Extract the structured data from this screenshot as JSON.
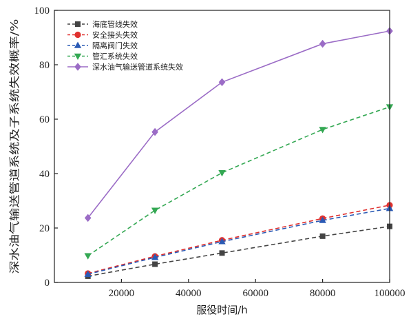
{
  "chart_data": {
    "type": "line",
    "xlabel": "服役时间/h",
    "ylabel": "深水油气输送管道系统及子系统失效概率/%",
    "xlim": [
      0,
      100000
    ],
    "ylim": [
      0,
      100
    ],
    "x_ticks": [
      20000,
      40000,
      60000,
      80000,
      100000
    ],
    "y_ticks": [
      0,
      20,
      40,
      60,
      80,
      100
    ],
    "x": [
      10000,
      30000,
      50000,
      80000,
      100000
    ],
    "grid": false,
    "legend_position": "top-left",
    "series": [
      {
        "name": "海底管线失效",
        "color": "#444444",
        "marker": "square",
        "dashed": true,
        "values": [
          2.3,
          6.7,
          10.8,
          17.0,
          20.6
        ]
      },
      {
        "name": "安全接头失效",
        "color": "#e0312f",
        "marker": "circle",
        "dashed": true,
        "values": [
          3.3,
          9.6,
          15.5,
          23.5,
          28.4
        ]
      },
      {
        "name": "隔离阀门失效",
        "color": "#2a5ab5",
        "marker": "triangle-up",
        "dashed": true,
        "values": [
          3.0,
          9.2,
          15.0,
          22.8,
          27.2
        ]
      },
      {
        "name": "管汇系统失效",
        "color": "#34a853",
        "marker": "triangle-down",
        "dashed": true,
        "values": [
          9.8,
          26.5,
          40.3,
          56.2,
          64.5
        ]
      },
      {
        "name": "深水油气输送管道系统失效",
        "color": "#9b6cc6",
        "marker": "diamond",
        "dashed": false,
        "values": [
          23.7,
          55.3,
          73.6,
          87.7,
          92.4
        ]
      }
    ]
  }
}
